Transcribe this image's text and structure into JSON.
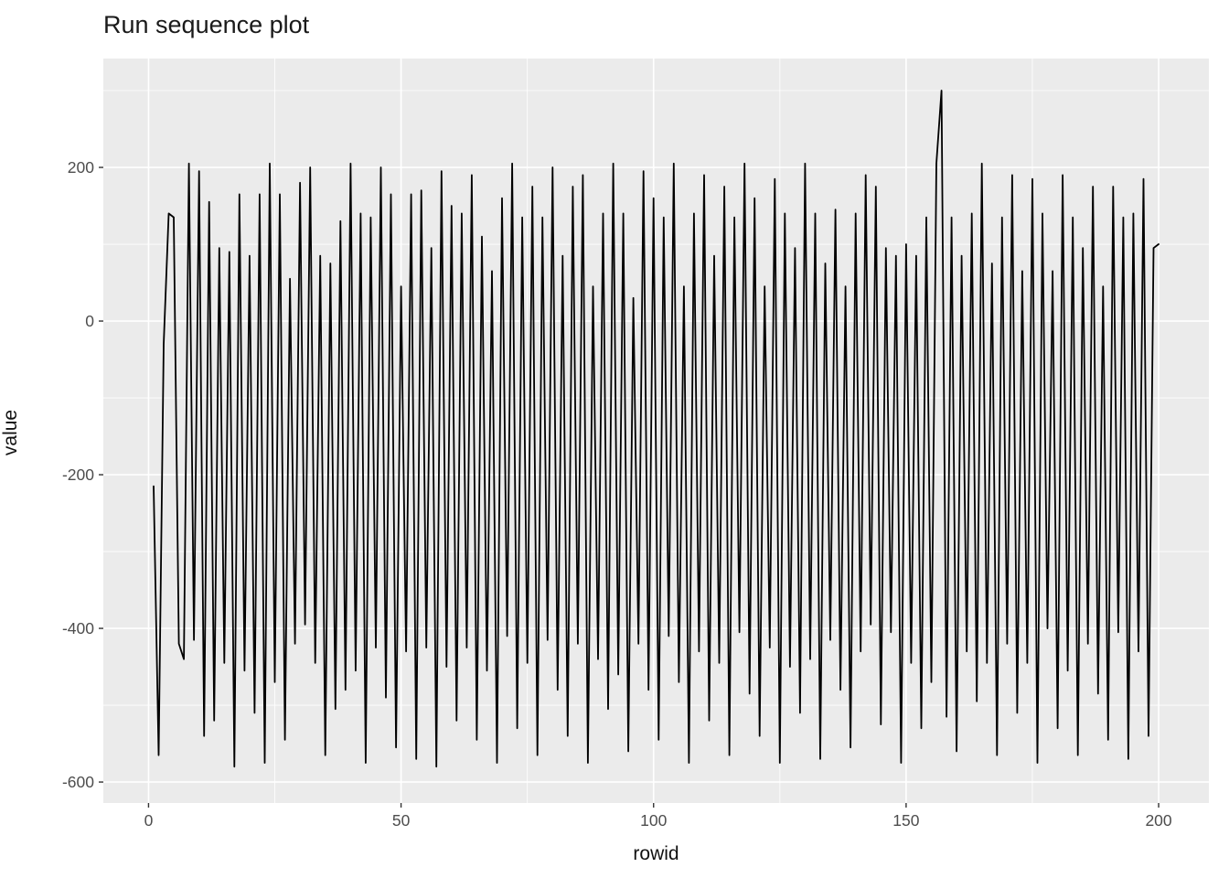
{
  "title": "Run sequence plot",
  "chart_data": {
    "type": "line",
    "title": "Run sequence plot",
    "xlabel": "rowid",
    "ylabel": "value",
    "series_name": "value",
    "line_color": "#000000",
    "panel_background": "#ebebeb",
    "gridline_color": "#ffffff",
    "tick_label_color": "#4d4d4d",
    "x_ticks": [
      0,
      50,
      100,
      150,
      200
    ],
    "y_ticks": [
      -600,
      -400,
      -200,
      0,
      200
    ],
    "x_minor_ticks": [
      25,
      75,
      125,
      175
    ],
    "y_minor_ticks": [
      -500,
      -300,
      -100,
      100,
      300
    ],
    "xlim": [
      -8.95,
      209.95
    ],
    "ylim": [
      -627.3,
      341.7
    ],
    "x_start": 1,
    "legend": "none",
    "grid": "on",
    "values": [
      -215,
      -565,
      -30,
      140,
      135,
      -420,
      -440,
      205,
      -415,
      195,
      -540,
      155,
      -520,
      95,
      -445,
      90,
      -580,
      165,
      -455,
      85,
      -510,
      165,
      -575,
      205,
      -470,
      165,
      -545,
      55,
      -420,
      180,
      -395,
      200,
      -445,
      85,
      -565,
      75,
      -505,
      130,
      -480,
      205,
      -455,
      140,
      -575,
      135,
      -425,
      200,
      -490,
      165,
      -555,
      45,
      -430,
      165,
      -570,
      170,
      -425,
      95,
      -580,
      195,
      -450,
      150,
      -520,
      140,
      -425,
      190,
      -545,
      110,
      -455,
      65,
      -575,
      160,
      -410,
      205,
      -530,
      135,
      -445,
      175,
      -565,
      135,
      -415,
      200,
      -480,
      85,
      -540,
      175,
      -420,
      190,
      -575,
      45,
      -440,
      140,
      -505,
      205,
      -460,
      140,
      -560,
      30,
      -420,
      195,
      -480,
      160,
      -545,
      135,
      -410,
      205,
      -470,
      45,
      -575,
      140,
      -430,
      190,
      -520,
      85,
      -445,
      175,
      -565,
      135,
      -405,
      205,
      -485,
      160,
      -540,
      45,
      -425,
      185,
      -575,
      140,
      -450,
      95,
      -510,
      205,
      -440,
      140,
      -570,
      75,
      -415,
      145,
      -480,
      45,
      -555,
      140,
      -430,
      190,
      -395,
      175,
      -525,
      95,
      -405,
      85,
      -575,
      100,
      -445,
      85,
      -530,
      135,
      -470,
      205,
      300,
      -515,
      135,
      -560,
      85,
      -430,
      140,
      -495,
      205,
      -445,
      75,
      -565,
      135,
      -420,
      190,
      -510,
      65,
      -445,
      185,
      -575,
      140,
      -400,
      65,
      -530,
      190,
      -455,
      135,
      -565,
      95,
      -420,
      175,
      -485,
      45,
      -545,
      175,
      -405,
      135,
      -570,
      140,
      -430,
      185,
      -540,
      95,
      100
    ]
  }
}
